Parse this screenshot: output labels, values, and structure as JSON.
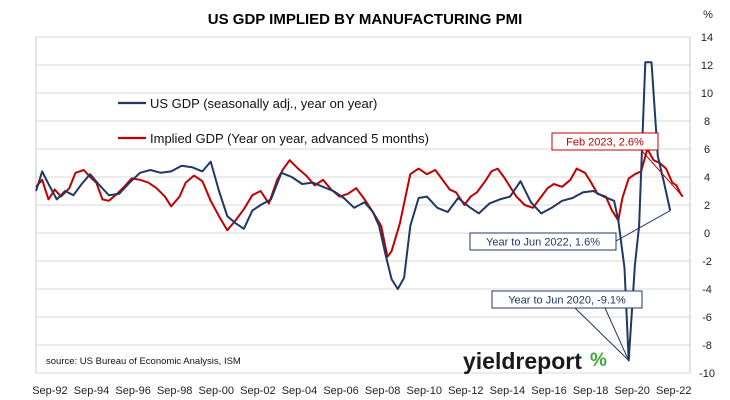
{
  "colors": {
    "gdp": "#1f3864",
    "implied": "#c00000",
    "grid": "#d9d9d9",
    "logo_green": "#3aaa35",
    "logo_red": "#d42a2a"
  },
  "chart_data": {
    "type": "line",
    "title": "US GDP IMPLIED BY MANUFACTURING PMI",
    "y_unit": "%",
    "ylim": [
      -10,
      14
    ],
    "y_ticks": [
      "14",
      "12",
      "10",
      "8",
      "6",
      "4",
      "2",
      "0",
      "-2",
      "-4",
      "-6",
      "-8",
      "-10"
    ],
    "x_tick_labels": [
      "Sep-92",
      "Sep-94",
      "Sep-96",
      "Sep-98",
      "Sep-00",
      "Sep-02",
      "Sep-04",
      "Sep-06",
      "Sep-08",
      "Sep-10",
      "Sep-12",
      "Sep-14",
      "Sep-16",
      "Sep-18",
      "Sep-20",
      "Sep-22"
    ],
    "legend_placement": "top-left",
    "grid": "horizontal",
    "series": [
      {
        "name": "US GDP (seasonally adj., year on year)",
        "points": [
          [
            1992.0,
            3.0
          ],
          [
            1992.3,
            4.4
          ],
          [
            1992.6,
            3.5
          ],
          [
            1993.0,
            2.4
          ],
          [
            1993.4,
            3.0
          ],
          [
            1993.8,
            2.7
          ],
          [
            1994.2,
            3.5
          ],
          [
            1994.6,
            4.2
          ],
          [
            1995.0,
            3.5
          ],
          [
            1995.5,
            2.7
          ],
          [
            1996.0,
            2.8
          ],
          [
            1996.5,
            3.6
          ],
          [
            1997.0,
            4.3
          ],
          [
            1997.5,
            4.5
          ],
          [
            1998.0,
            4.3
          ],
          [
            1998.5,
            4.4
          ],
          [
            1999.0,
            4.8
          ],
          [
            1999.5,
            4.7
          ],
          [
            2000.0,
            4.4
          ],
          [
            2000.4,
            5.1
          ],
          [
            2000.8,
            3.0
          ],
          [
            2001.2,
            1.2
          ],
          [
            2001.6,
            0.7
          ],
          [
            2002.0,
            0.3
          ],
          [
            2002.4,
            1.6
          ],
          [
            2002.8,
            2.0
          ],
          [
            2003.3,
            2.4
          ],
          [
            2003.8,
            4.3
          ],
          [
            2004.3,
            4.0
          ],
          [
            2004.8,
            3.5
          ],
          [
            2005.3,
            3.6
          ],
          [
            2005.8,
            3.3
          ],
          [
            2006.3,
            3.0
          ],
          [
            2006.8,
            2.5
          ],
          [
            2007.3,
            1.8
          ],
          [
            2007.8,
            2.2
          ],
          [
            2008.2,
            1.5
          ],
          [
            2008.5,
            0.5
          ],
          [
            2008.8,
            -1.5
          ],
          [
            2009.1,
            -3.3
          ],
          [
            2009.4,
            -4.0
          ],
          [
            2009.7,
            -3.2
          ],
          [
            2010.0,
            0.5
          ],
          [
            2010.4,
            2.5
          ],
          [
            2010.8,
            2.6
          ],
          [
            2011.3,
            1.8
          ],
          [
            2011.8,
            1.5
          ],
          [
            2012.3,
            2.5
          ],
          [
            2012.8,
            1.9
          ],
          [
            2013.3,
            1.4
          ],
          [
            2013.8,
            2.1
          ],
          [
            2014.3,
            2.4
          ],
          [
            2014.8,
            2.6
          ],
          [
            2015.3,
            3.7
          ],
          [
            2015.8,
            2.2
          ],
          [
            2016.3,
            1.4
          ],
          [
            2016.8,
            1.8
          ],
          [
            2017.3,
            2.3
          ],
          [
            2017.8,
            2.5
          ],
          [
            2018.3,
            2.9
          ],
          [
            2018.8,
            3.0
          ],
          [
            2019.3,
            2.6
          ],
          [
            2019.8,
            2.3
          ],
          [
            2020.0,
            0.9
          ],
          [
            2020.3,
            -2.5
          ],
          [
            2020.5,
            -9.1
          ],
          [
            2020.8,
            -2.3
          ],
          [
            2021.0,
            0.5
          ],
          [
            2021.3,
            12.2
          ],
          [
            2021.6,
            12.2
          ],
          [
            2021.9,
            5.5
          ],
          [
            2022.2,
            3.6
          ],
          [
            2022.5,
            1.6
          ]
        ]
      },
      {
        "name": "Implied GDP (Year on year, advanced 5 months)",
        "points": [
          [
            1992.0,
            3.3
          ],
          [
            1992.3,
            3.8
          ],
          [
            1992.6,
            2.4
          ],
          [
            1992.9,
            3.1
          ],
          [
            1993.2,
            2.6
          ],
          [
            1993.6,
            3.2
          ],
          [
            1993.9,
            4.3
          ],
          [
            1994.3,
            4.5
          ],
          [
            1994.6,
            4.0
          ],
          [
            1994.9,
            3.6
          ],
          [
            1995.2,
            2.4
          ],
          [
            1995.5,
            2.3
          ],
          [
            1995.9,
            2.8
          ],
          [
            1996.3,
            3.4
          ],
          [
            1996.6,
            3.9
          ],
          [
            1997.0,
            3.8
          ],
          [
            1997.4,
            3.6
          ],
          [
            1997.8,
            3.2
          ],
          [
            1998.2,
            2.6
          ],
          [
            1998.5,
            1.9
          ],
          [
            1998.9,
            2.6
          ],
          [
            1999.2,
            3.6
          ],
          [
            1999.6,
            4.1
          ],
          [
            2000.0,
            3.7
          ],
          [
            2000.4,
            2.3
          ],
          [
            2000.8,
            1.2
          ],
          [
            2001.2,
            0.2
          ],
          [
            2001.6,
            0.9
          ],
          [
            2002.0,
            1.7
          ],
          [
            2002.4,
            2.7
          ],
          [
            2002.8,
            3.0
          ],
          [
            2003.2,
            2.1
          ],
          [
            2003.6,
            3.8
          ],
          [
            2003.9,
            4.6
          ],
          [
            2004.2,
            5.2
          ],
          [
            2004.6,
            4.6
          ],
          [
            2005.0,
            4.1
          ],
          [
            2005.4,
            3.4
          ],
          [
            2005.8,
            3.8
          ],
          [
            2006.2,
            3.1
          ],
          [
            2006.6,
            2.6
          ],
          [
            2007.0,
            2.8
          ],
          [
            2007.4,
            3.2
          ],
          [
            2007.8,
            2.4
          ],
          [
            2008.2,
            1.5
          ],
          [
            2008.6,
            0.5
          ],
          [
            2008.9,
            -1.7
          ],
          [
            2009.1,
            -1.3
          ],
          [
            2009.5,
            0.7
          ],
          [
            2009.8,
            2.8
          ],
          [
            2010.0,
            4.2
          ],
          [
            2010.4,
            4.6
          ],
          [
            2010.8,
            4.2
          ],
          [
            2011.2,
            4.5
          ],
          [
            2011.6,
            3.7
          ],
          [
            2011.9,
            3.1
          ],
          [
            2012.2,
            2.9
          ],
          [
            2012.6,
            2.0
          ],
          [
            2012.9,
            2.6
          ],
          [
            2013.2,
            2.9
          ],
          [
            2013.6,
            3.7
          ],
          [
            2013.9,
            4.4
          ],
          [
            2014.2,
            4.6
          ],
          [
            2014.5,
            4.0
          ],
          [
            2014.8,
            3.3
          ],
          [
            2015.1,
            2.6
          ],
          [
            2015.5,
            2.0
          ],
          [
            2015.9,
            1.8
          ],
          [
            2016.2,
            2.4
          ],
          [
            2016.6,
            3.2
          ],
          [
            2016.9,
            3.5
          ],
          [
            2017.3,
            3.3
          ],
          [
            2017.7,
            3.8
          ],
          [
            2018.0,
            4.6
          ],
          [
            2018.4,
            4.3
          ],
          [
            2018.7,
            3.6
          ],
          [
            2019.0,
            2.8
          ],
          [
            2019.4,
            2.6
          ],
          [
            2019.7,
            1.6
          ],
          [
            2020.0,
            0.9
          ],
          [
            2020.2,
            2.5
          ],
          [
            2020.5,
            3.9
          ],
          [
            2020.8,
            4.2
          ],
          [
            2021.1,
            4.4
          ],
          [
            2021.4,
            6.0
          ],
          [
            2021.7,
            5.2
          ],
          [
            2022.0,
            5.0
          ],
          [
            2022.3,
            4.6
          ],
          [
            2022.6,
            3.6
          ],
          [
            2022.8,
            3.4
          ],
          [
            2023.0,
            2.8
          ],
          [
            2023.1,
            2.6
          ]
        ]
      }
    ],
    "annotations": [
      {
        "text": "Feb 2023, 2.6%",
        "x": 2023.1,
        "y": 2.6,
        "color": "#c00000"
      },
      {
        "text": "Year to Jun 2022, 1.6%",
        "x": 2022.5,
        "y": 1.6,
        "color": "#1f3864"
      },
      {
        "text": "Year to Jun 2020, -9.1%",
        "x": 2020.5,
        "y": -9.1,
        "color": "#1f3864"
      }
    ],
    "source": "source: US Bureau of Economic Analysis, ISM",
    "logo": {
      "main": "yieldreport",
      "symbol": "%"
    }
  }
}
